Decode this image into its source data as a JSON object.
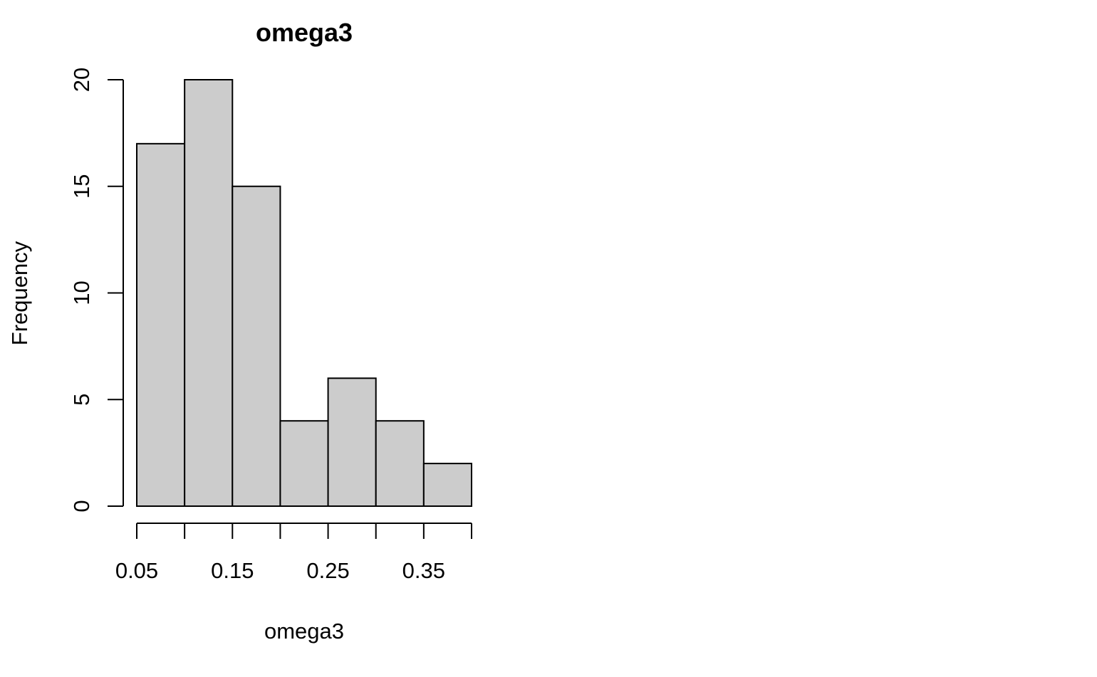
{
  "chart_data": {
    "type": "bar",
    "title": "omega3",
    "xlabel": "omega3",
    "ylabel": "Frequency",
    "bin_edges": [
      0.05,
      0.1,
      0.15,
      0.2,
      0.25,
      0.3,
      0.35,
      0.4
    ],
    "values": [
      17,
      20,
      15,
      4,
      6,
      4,
      2
    ],
    "xlim": [
      0.05,
      0.4
    ],
    "ylim": [
      0,
      20
    ],
    "x_ticks": [
      0.05,
      0.1,
      0.15,
      0.2,
      0.25,
      0.3,
      0.35,
      0.4
    ],
    "x_tick_labels": [
      "0.05",
      "",
      "0.15",
      "",
      "0.25",
      "",
      "0.35",
      ""
    ],
    "y_ticks": [
      0,
      5,
      10,
      15,
      20
    ],
    "y_tick_labels": [
      "0",
      "5",
      "10",
      "15",
      "20"
    ],
    "grid": false,
    "bar_fill": "#cccccc",
    "bar_stroke": "#000000"
  }
}
